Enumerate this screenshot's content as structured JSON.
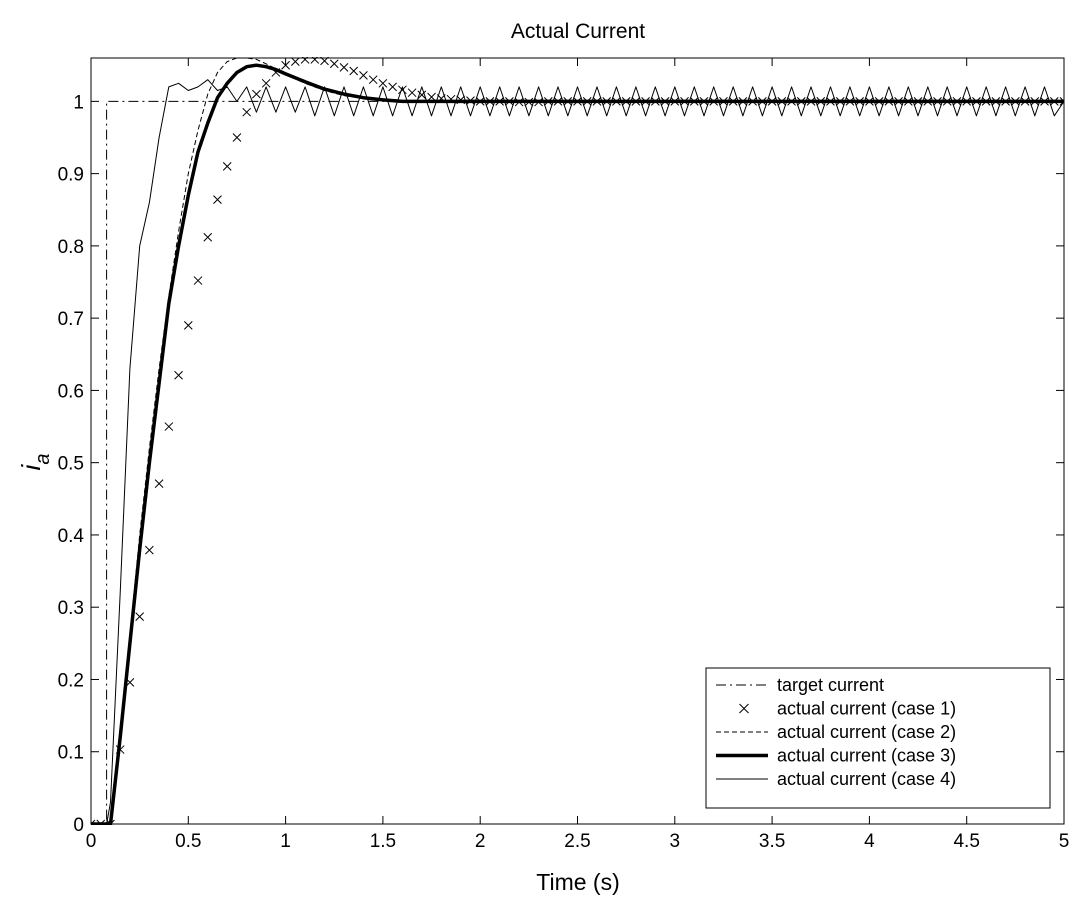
{
  "chart_data": {
    "type": "line",
    "title": "Actual Current",
    "xlabel": "Time (s)",
    "ylabel": "i",
    "ylabel_subscript": "a",
    "xlim": [
      0,
      5
    ],
    "ylim": [
      0,
      1.06
    ],
    "xticks": [
      "0",
      "0.5",
      "1",
      "1.5",
      "2",
      "2.5",
      "3",
      "3.5",
      "4",
      "4.5",
      "5"
    ],
    "yticks": [
      "0",
      "0.1",
      "0.2",
      "0.3",
      "0.4",
      "0.5",
      "0.6",
      "0.7",
      "0.8",
      "0.9",
      "1"
    ],
    "grid": false,
    "legend_position": "bottom-right",
    "colors": {
      "line": "#000000",
      "background": "#ffffff"
    },
    "series": [
      {
        "name": "target current",
        "style": "dash-dot",
        "x": [
          0,
          0.08,
          0.08,
          5
        ],
        "y": [
          0,
          0,
          1,
          1
        ]
      },
      {
        "name": "actual current (case 1)",
        "style": "x-markers",
        "x": [
          0,
          0.05,
          0.1,
          0.15,
          0.2,
          0.25,
          0.3,
          0.35,
          0.4,
          0.45,
          0.5,
          0.55,
          0.6,
          0.65,
          0.7,
          0.75,
          0.8,
          0.85,
          0.9,
          0.95,
          1.0,
          1.05,
          1.1,
          1.15,
          1.2,
          1.25,
          1.3,
          1.35,
          1.4,
          1.45,
          1.5,
          1.55,
          1.6,
          1.65,
          1.7,
          1.75,
          1.8,
          1.85,
          1.9,
          1.95,
          2.0,
          2.05,
          2.1,
          2.15,
          2.2,
          2.25,
          2.3,
          2.35,
          2.4,
          2.45,
          2.5,
          2.55,
          2.6,
          2.65,
          2.7,
          2.75,
          2.8,
          2.85,
          2.9,
          2.95,
          3.0,
          3.05,
          3.1,
          3.15,
          3.2,
          3.25,
          3.3,
          3.35,
          3.4,
          3.45,
          3.5,
          3.55,
          3.6,
          3.65,
          3.7,
          3.75,
          3.8,
          3.85,
          3.9,
          3.95,
          4.0,
          4.05,
          4.1,
          4.15,
          4.2,
          4.25,
          4.3,
          4.35,
          4.4,
          4.45,
          4.5,
          4.55,
          4.6,
          4.65,
          4.7,
          4.75,
          4.8,
          4.85,
          4.9,
          4.95,
          5.0
        ],
        "y": [
          0,
          0,
          0,
          0.103,
          0.196,
          0.287,
          0.379,
          0.471,
          0.55,
          0.621,
          0.69,
          0.752,
          0.812,
          0.864,
          0.91,
          0.95,
          0.985,
          1.01,
          1.025,
          1.04,
          1.05,
          1.055,
          1.058,
          1.058,
          1.056,
          1.052,
          1.047,
          1.042,
          1.036,
          1.03,
          1.025,
          1.02,
          1.016,
          1.012,
          1.009,
          1.006,
          1.004,
          1.003,
          1.002,
          1.001,
          1.0,
          1.0,
          1.0,
          1.0,
          0.999,
          0.999,
          0.999,
          1.0,
          1.0,
          1.0,
          1.0,
          1.0,
          1.0,
          1.0,
          1.0,
          1.0,
          1.0,
          1.0,
          1.0,
          1.0,
          1.0,
          1.0,
          1.0,
          1.0,
          1.0,
          1.0,
          1.0,
          1.0,
          1.0,
          1.0,
          1.0,
          1.0,
          1.0,
          1.0,
          1.0,
          1.0,
          1.0,
          1.0,
          1.0,
          1.0,
          1.0,
          1.0,
          1.0,
          1.0,
          1.0,
          1.0,
          1.0,
          1.0,
          1.0,
          1.0,
          1.0,
          1.0,
          1.0,
          1.0,
          1.0,
          1.0,
          1.0,
          1.0,
          1.0,
          1.0,
          1.0
        ]
      },
      {
        "name": "actual current (case 2)",
        "style": "dashed",
        "x": [
          0,
          0.1,
          0.15,
          0.2,
          0.25,
          0.3,
          0.35,
          0.4,
          0.45,
          0.5,
          0.55,
          0.6,
          0.65,
          0.7,
          0.75,
          0.8,
          0.85,
          0.9,
          0.95,
          1.0,
          1.1,
          1.2,
          1.3,
          1.4,
          1.5,
          1.6,
          1.8,
          2.0,
          5.0
        ],
        "y": [
          0,
          0,
          0.12,
          0.26,
          0.4,
          0.52,
          0.63,
          0.73,
          0.82,
          0.9,
          0.96,
          1.01,
          1.04,
          1.055,
          1.06,
          1.06,
          1.058,
          1.052,
          1.045,
          1.037,
          1.025,
          1.015,
          1.008,
          1.004,
          1.002,
          1.001,
          1.0,
          1.0,
          1.0
        ]
      },
      {
        "name": "actual current (case 3)",
        "style": "thick",
        "x": [
          0,
          0.1,
          0.15,
          0.2,
          0.25,
          0.3,
          0.35,
          0.4,
          0.45,
          0.5,
          0.55,
          0.6,
          0.65,
          0.7,
          0.75,
          0.8,
          0.85,
          0.9,
          0.95,
          1.0,
          1.1,
          1.2,
          1.3,
          1.4,
          1.5,
          1.6,
          1.8,
          2.0,
          5.0
        ],
        "y": [
          0,
          0,
          0.12,
          0.25,
          0.38,
          0.5,
          0.61,
          0.72,
          0.8,
          0.87,
          0.93,
          0.97,
          1.005,
          1.025,
          1.04,
          1.048,
          1.05,
          1.048,
          1.044,
          1.038,
          1.027,
          1.017,
          1.01,
          1.005,
          1.002,
          1.0,
          1.0,
          1.0,
          1.0
        ]
      },
      {
        "name": "actual current (case 4)",
        "style": "thin",
        "x": [
          0,
          0.08,
          0.1,
          0.15,
          0.2,
          0.25,
          0.3,
          0.35,
          0.4,
          0.45,
          0.5,
          0.55,
          0.6,
          0.65,
          0.7,
          0.75,
          0.8,
          0.85,
          0.9,
          0.95,
          1.0,
          1.05,
          1.1,
          1.15,
          1.2,
          1.25,
          1.3,
          1.35,
          1.4,
          1.45,
          1.5,
          1.55,
          1.6,
          1.65,
          1.7,
          1.75,
          1.8,
          1.85,
          1.9,
          1.95,
          2.0,
          2.05,
          2.1,
          2.15,
          2.2,
          2.25,
          2.3,
          2.35,
          2.4,
          2.45,
          2.5,
          2.55,
          2.6,
          2.65,
          2.7,
          2.75,
          2.8,
          2.85,
          2.9,
          2.95,
          3.0,
          3.05,
          3.1,
          3.15,
          3.2,
          3.25,
          3.3,
          3.35,
          3.4,
          3.45,
          3.5,
          3.55,
          3.6,
          3.65,
          3.7,
          3.75,
          3.8,
          3.85,
          3.9,
          3.95,
          4.0,
          4.05,
          4.1,
          4.15,
          4.2,
          4.25,
          4.3,
          4.35,
          4.4,
          4.45,
          4.5,
          4.55,
          4.6,
          4.65,
          4.7,
          4.75,
          4.8,
          4.85,
          4.9,
          4.95,
          5.0
        ],
        "y": [
          0,
          0,
          0.03,
          0.32,
          0.63,
          0.8,
          0.86,
          0.95,
          1.02,
          1.025,
          1.015,
          1.02,
          1.03,
          1.015,
          1.02,
          1.0,
          1.02,
          0.985,
          1.02,
          0.985,
          1.02,
          0.985,
          1.02,
          0.98,
          1.02,
          0.98,
          1.02,
          0.98,
          1.02,
          0.98,
          1.02,
          0.98,
          1.02,
          0.98,
          1.02,
          0.98,
          1.02,
          0.98,
          1.02,
          0.98,
          1.02,
          0.98,
          1.02,
          0.98,
          1.02,
          0.98,
          1.02,
          0.98,
          1.02,
          0.98,
          1.02,
          0.98,
          1.02,
          0.98,
          1.02,
          0.98,
          1.02,
          0.98,
          1.02,
          0.98,
          1.02,
          0.98,
          1.02,
          0.98,
          1.02,
          0.98,
          1.02,
          0.98,
          1.02,
          0.98,
          1.02,
          0.98,
          1.02,
          0.98,
          1.02,
          0.98,
          1.02,
          0.98,
          1.02,
          0.98,
          1.02,
          0.98,
          1.02,
          0.98,
          1.02,
          0.98,
          1.02,
          0.98,
          1.02,
          0.98,
          1.02,
          0.98,
          1.02,
          0.98,
          1.02,
          0.98,
          1.02,
          0.98,
          1.02,
          0.98,
          1.0
        ]
      }
    ]
  }
}
